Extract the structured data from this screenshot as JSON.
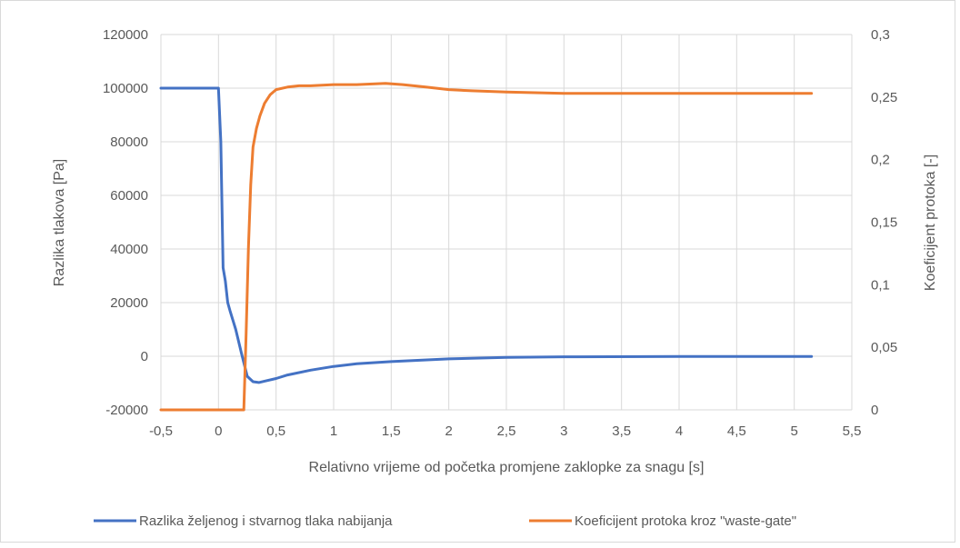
{
  "chart_data": {
    "type": "line",
    "xlabel": "Relativno vrijeme od početka promjene zaklopke za snagu [s]",
    "ylabel": "Razlika tlakova [Pa]",
    "y2label": "Koeficijent protoka [-]",
    "xlim": [
      -0.5,
      5.5
    ],
    "ylim": [
      -20000,
      120000
    ],
    "y2lim": [
      0,
      0.3
    ],
    "x_ticks": [
      "-0,5",
      "0",
      "0,5",
      "1",
      "1,5",
      "2",
      "2,5",
      "3",
      "3,5",
      "4",
      "4,5",
      "5",
      "5,5"
    ],
    "y_ticks": [
      "-20000",
      "0",
      "20000",
      "40000",
      "60000",
      "80000",
      "100000",
      "120000"
    ],
    "y2_ticks": [
      "0",
      "0,05",
      "0,1",
      "0,15",
      "0,2",
      "0,25",
      "0,3"
    ],
    "grid": true,
    "legend_position": "bottom",
    "series": [
      {
        "name": "Razlika željenog i stvarnog tlaka nabijanja",
        "color": "#4472C4",
        "axis": "left",
        "x": [
          -0.5,
          0.0,
          0.02,
          0.04,
          0.06,
          0.08,
          0.1,
          0.15,
          0.2,
          0.25,
          0.3,
          0.35,
          0.4,
          0.5,
          0.6,
          0.8,
          1.0,
          1.2,
          1.5,
          2.0,
          2.5,
          3.0,
          4.0,
          5.15
        ],
        "values": [
          100000,
          100000,
          80000,
          33000,
          28000,
          20000,
          17000,
          10000,
          1000,
          -7500,
          -9500,
          -9800,
          -9300,
          -8300,
          -7000,
          -5200,
          -3800,
          -2800,
          -2000,
          -1000,
          -400,
          -200,
          -100,
          -100
        ]
      },
      {
        "name": "Koeficijent protoka kroz \"waste-gate\"",
        "color": "#ED7D31",
        "axis": "right",
        "x": [
          -0.5,
          0.0,
          0.22,
          0.24,
          0.26,
          0.28,
          0.3,
          0.33,
          0.36,
          0.4,
          0.45,
          0.5,
          0.6,
          0.7,
          0.8,
          1.0,
          1.2,
          1.45,
          1.6,
          1.8,
          2.0,
          2.2,
          2.5,
          3.0,
          4.0,
          5.15
        ],
        "values": [
          0,
          0,
          0,
          0.06,
          0.13,
          0.18,
          0.21,
          0.225,
          0.235,
          0.245,
          0.252,
          0.256,
          0.258,
          0.259,
          0.259,
          0.26,
          0.26,
          0.261,
          0.26,
          0.258,
          0.256,
          0.255,
          0.254,
          0.253,
          0.253,
          0.253
        ]
      }
    ]
  }
}
